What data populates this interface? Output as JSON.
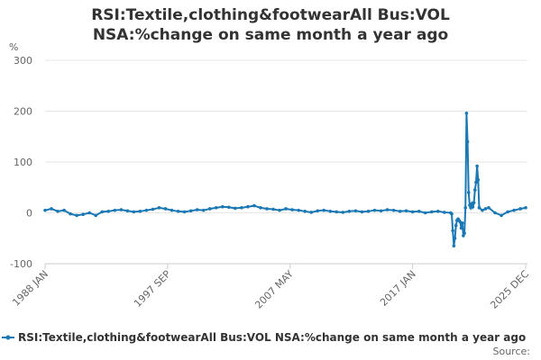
{
  "chart_data": {
    "type": "line",
    "title": "RSI:Textile,clothing&footwearAll Bus:VOL NSA:%change on same month a year ago",
    "y_label": "%",
    "source": "Source:",
    "x": [
      "1988-01",
      "1988-07",
      "1989-01",
      "1989-07",
      "1990-01",
      "1990-07",
      "1991-01",
      "1991-07",
      "1992-01",
      "1992-07",
      "1993-01",
      "1993-07",
      "1994-01",
      "1994-07",
      "1995-01",
      "1995-07",
      "1996-01",
      "1996-07",
      "1997-01",
      "1997-07",
      "1998-01",
      "1998-07",
      "1999-01",
      "1999-07",
      "2000-01",
      "2000-07",
      "2001-01",
      "2001-07",
      "2002-01",
      "2002-07",
      "2003-01",
      "2003-07",
      "2004-01",
      "2004-07",
      "2005-01",
      "2005-07",
      "2006-01",
      "2006-07",
      "2007-01",
      "2007-07",
      "2008-01",
      "2008-07",
      "2009-01",
      "2009-07",
      "2010-01",
      "2010-07",
      "2011-01",
      "2011-07",
      "2012-01",
      "2012-07",
      "2013-01",
      "2013-07",
      "2014-01",
      "2014-07",
      "2015-01",
      "2015-07",
      "2016-01",
      "2016-07",
      "2017-01",
      "2017-07",
      "2018-01",
      "2018-07",
      "2019-01",
      "2019-07",
      "2020-01",
      "2020-02",
      "2020-03",
      "2020-04",
      "2020-05",
      "2020-06",
      "2020-07",
      "2020-08",
      "2020-09",
      "2020-10",
      "2020-11",
      "2020-12",
      "2021-01",
      "2021-02",
      "2021-03",
      "2021-04",
      "2021-05",
      "2021-06",
      "2021-07",
      "2021-08",
      "2021-09",
      "2021-10",
      "2021-11",
      "2021-12",
      "2022-01",
      "2022-02",
      "2022-03",
      "2022-04",
      "2022-07",
      "2022-10",
      "2023-01",
      "2023-07",
      "2024-01",
      "2024-07",
      "2025-01",
      "2025-07",
      "2025-12"
    ],
    "series": [
      {
        "name": "RSI:Textile,clothing&footwearAll Bus:VOL NSA:%change on same month a year ago",
        "color": "#1a78b4",
        "values": [
          5,
          8,
          3,
          5,
          -2,
          -5,
          -3,
          0,
          -5,
          2,
          3,
          5,
          6,
          4,
          2,
          3,
          5,
          7,
          10,
          8,
          5,
          3,
          2,
          4,
          6,
          5,
          8,
          10,
          12,
          11,
          9,
          10,
          12,
          14,
          10,
          8,
          7,
          5,
          8,
          6,
          5,
          3,
          1,
          4,
          5,
          3,
          2,
          1,
          3,
          4,
          2,
          3,
          5,
          4,
          6,
          5,
          3,
          4,
          2,
          3,
          0,
          2,
          3,
          1,
          0,
          -2,
          -35,
          -65,
          -50,
          -25,
          -15,
          -12,
          -15,
          -18,
          -30,
          -20,
          -45,
          -40,
          10,
          196,
          140,
          40,
          15,
          10,
          18,
          12,
          20,
          45,
          60,
          92,
          65,
          10,
          5,
          8,
          10,
          0,
          -5,
          2,
          5,
          8,
          10
        ]
      }
    ],
    "xlim": [
      "1988-01",
      "2025-12"
    ],
    "xticks": [
      {
        "value": "1988-01",
        "label": "1988 JAN"
      },
      {
        "value": "1997-09",
        "label": "1997 SEP"
      },
      {
        "value": "2007-05",
        "label": "2007 MAY"
      },
      {
        "value": "2017-01",
        "label": "2017 JAN"
      },
      {
        "value": "2025-12",
        "label": "2025 DEC"
      }
    ],
    "ylim": [
      -100,
      300
    ],
    "yticks": [
      -100,
      0,
      100,
      200,
      300
    ],
    "grid": true
  }
}
